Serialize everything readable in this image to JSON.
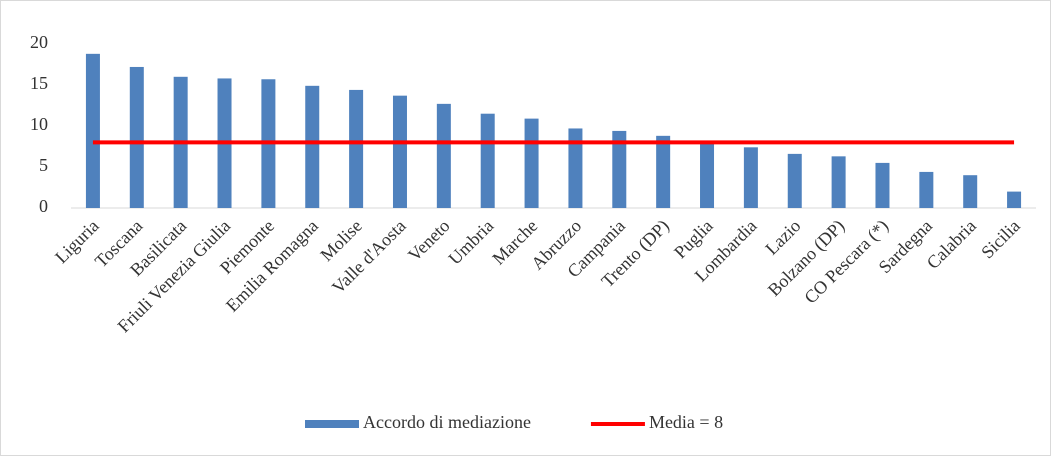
{
  "chart_data": {
    "type": "bar",
    "categories": [
      "Liguria",
      "Toscana",
      "Basilicata",
      "Friuli Venezia Giulia",
      "Piemonte",
      "Emilia Romagna",
      "Molise",
      "Valle d'Aosta",
      "Veneto",
      "Umbria",
      "Marche",
      "Abruzzo",
      "Campania",
      "Trento (DP)",
      "Puglia",
      "Lombardia",
      "Lazio",
      "Bolzano (DP)",
      "CO Pescara (*)",
      "Sardegna",
      "Calabria",
      "Sicilia"
    ],
    "series": [
      {
        "name": "Accordo di mediazione",
        "type": "bar",
        "color": "#4f81bd",
        "values": [
          18.8,
          17.2,
          16.0,
          15.8,
          15.7,
          14.9,
          14.4,
          13.7,
          12.7,
          11.5,
          10.9,
          9.7,
          9.4,
          8.8,
          8.1,
          7.4,
          6.6,
          6.3,
          5.5,
          4.4,
          4.0,
          2.0
        ]
      },
      {
        "name": "Media = 8",
        "type": "line",
        "color": "#ff0000",
        "values": [
          8,
          8,
          8,
          8,
          8,
          8,
          8,
          8,
          8,
          8,
          8,
          8,
          8,
          8,
          8,
          8,
          8,
          8,
          8,
          8,
          8,
          8
        ]
      }
    ],
    "ylim": [
      0,
      20
    ],
    "yticks": [
      0,
      5,
      10,
      15,
      20
    ],
    "grid": false,
    "legend": "bottom"
  }
}
